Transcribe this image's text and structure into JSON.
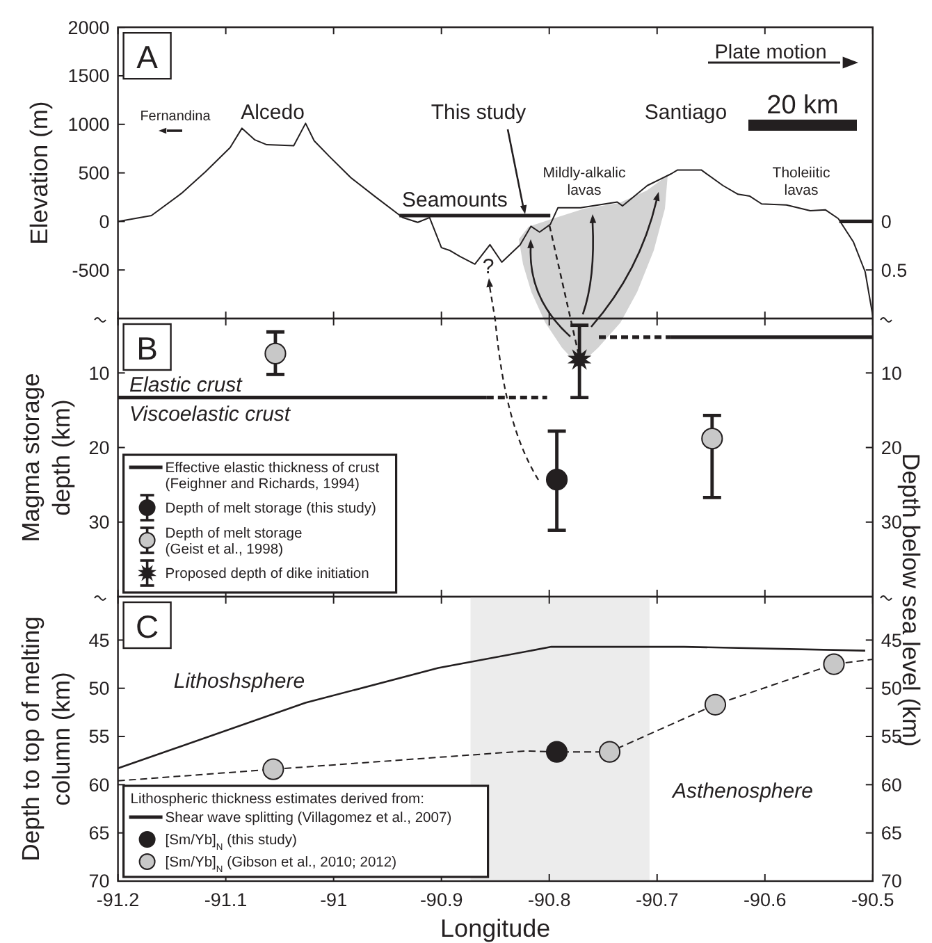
{
  "chart_data": [
    {
      "type": "line",
      "ylabel": "Elevation (m)",
      "xlim": [
        -91.2,
        -90.5
      ],
      "xticks": [
        -91.2,
        -91.1,
        -91,
        -90.9,
        -90.8,
        -90.7,
        -90.6,
        -90.5
      ],
      "ylim": [
        -1000,
        2000
      ],
      "yticks": [
        -500,
        0,
        500,
        1000,
        1500,
        2000
      ],
      "y2lim": [
        1,
        -2
      ],
      "y2ticks": [
        0,
        0.5
      ],
      "tick_labels": "y",
      "annotations": [
        "A",
        "Plate motion",
        "20 km",
        "Fernandina",
        "Alcedo",
        "This study",
        "Santiago",
        "Seamounts",
        "Mildly-alkalic lavas",
        "Tholeiitic lavas",
        "?"
      ],
      "series": [
        {
          "color": "#231f20",
          "x": [
            -91.2,
            -91.169,
            -91.141,
            -91.119,
            -91.096,
            -91.085,
            -91.073,
            -91.062,
            -91.037,
            -91.026,
            -91.018,
            -91.004,
            -90.984,
            -90.962,
            -90.936,
            -90.922,
            -90.911,
            -90.9,
            -90.892,
            -90.883,
            -90.869,
            -90.855,
            -90.844,
            -90.827,
            -90.817,
            -90.809,
            -90.799,
            -90.792,
            -90.771,
            -90.737,
            -90.732,
            -90.709,
            -90.687,
            -90.681,
            -90.659,
            -90.639,
            -90.625,
            -90.614,
            -90.603,
            -90.58,
            -90.558,
            -90.544,
            -90.532,
            -90.518,
            -90.507,
            -90.5
          ],
          "values": [
            0,
            60,
            290,
            510,
            760,
            960,
            840,
            790,
            780,
            1010,
            830,
            670,
            450,
            260,
            40,
            -10,
            40,
            -270,
            -300,
            -360,
            -440,
            -240,
            -420,
            -240,
            -50,
            -110,
            -30,
            140,
            140,
            200,
            160,
            370,
            490,
            530,
            530,
            370,
            280,
            260,
            180,
            170,
            110,
            120,
            30,
            -210,
            -520,
            -970
          ]
        },
        {
          "color": "#231f20",
          "x": [
            -90.939,
            -90.799,
            -90.7,
            -90.531,
            -90.5
          ],
          "values": [
            60,
            60,
            null,
            0,
            0
          ]
        }
      ]
    },
    {
      "type": "scatter",
      "ylabel": "Magma storage depth (km)",
      "y2label": "Depth below sea level (km)",
      "xlim": [
        -91.2,
        -90.5
      ],
      "xticks": [
        -91.2,
        -91.1,
        -91,
        -90.9,
        -90.8,
        -90.7,
        -90.6,
        -90.5
      ],
      "ylim": [
        40,
        2.7
      ],
      "yticks": [
        10,
        20,
        30
      ],
      "y2lim": [
        40,
        2.7
      ],
      "y2ticks": [
        10,
        20,
        30
      ],
      "tick_labels": "y",
      "legend": "bottom left",
      "annotations": [
        "B",
        "Elastic crust",
        "Viscoelastic crust"
      ],
      "series": [
        {
          "name": "Effective elastic thickness of crust (Feighner and Richards, 1994)",
          "type": "line",
          "color": "#231f20",
          "line_style": "solid",
          "x": [
            -91.2,
            -90.858,
            -90.8,
            -90.687,
            -90.5
          ],
          "values": [
            13.3,
            13.3,
            null,
            5.2,
            5.2
          ]
        },
        {
          "type": "line",
          "color": "#231f20",
          "line_style": "dashed",
          "x": [
            -90.858,
            -90.802,
            -90.79,
            -90.754,
            -90.687
          ],
          "values": [
            13.3,
            13.3,
            null,
            5.2,
            5.2
          ]
        },
        {
          "name": "Depth of melt storage (this study)",
          "marker": "circle",
          "color": "#231f20",
          "x": [
            -90.793
          ],
          "values": [
            24.3
          ],
          "errors": [
            [
              17.8,
              31.1
            ]
          ]
        },
        {
          "name": "Depth of melt storage (Geist et al., 1998)",
          "marker": "circle",
          "color": "#c8c8c8",
          "x": [
            -91.054,
            -90.649
          ],
          "values": [
            7.4,
            18.8
          ],
          "errors": [
            [
              4.5,
              10.2
            ],
            [
              15.7,
              26.7
            ]
          ]
        },
        {
          "name": "Proposed depth of dike initiation",
          "marker": "star",
          "color": "#231f20",
          "x": [
            -90.772
          ],
          "values": [
            8.2
          ],
          "errors": [
            [
              3.6,
              13.3
            ]
          ]
        }
      ]
    },
    {
      "type": "line",
      "ylabel": "Depth to top of melting column (km)",
      "xlabel": "Longitude",
      "xlim": [
        -91.2,
        -90.5
      ],
      "xticks": [
        -91.2,
        -91.1,
        -91,
        -90.9,
        -90.8,
        -90.7,
        -90.6,
        -90.5
      ],
      "ylim": [
        70,
        40.5
      ],
      "yticks": [
        45,
        50,
        55,
        60,
        65,
        70
      ],
      "y2lim": [
        70,
        40.5
      ],
      "y2ticks": [
        45,
        50,
        55,
        60,
        65,
        70
      ],
      "legend": "bottom left",
      "legend_title": "Lithospheric thickness estimates derived from:",
      "bands": [
        {
          "axis": "x",
          "from": -90.873,
          "to": -90.707,
          "color": "#ececec"
        }
      ],
      "annotations": [
        "C",
        "Lithoshsphere",
        "Asthenosphere"
      ],
      "series": [
        {
          "name": "Shear wave splitting (Villagomez et al., 2007)",
          "color": "#231f20",
          "line_style": "solid",
          "x": [
            -91.2,
            -91.026,
            -90.903,
            -90.798,
            -90.675,
            -90.507
          ],
          "values": [
            58.3,
            51.5,
            47.9,
            45.7,
            45.7,
            46.1
          ]
        },
        {
          "color": "#231f20",
          "line_style": "dashed",
          "x": [
            -91.2,
            -91.056,
            -90.821,
            -90.793,
            -90.744,
            -90.646,
            -90.536,
            -90.5
          ],
          "values": [
            59.6,
            58.4,
            56.5,
            56.6,
            56.6,
            51.7,
            47.5,
            47.0
          ]
        },
        {
          "name": "[Sm/Yb]$_{N}$ (this study)",
          "type": "scatter",
          "marker": "circle",
          "color": "#231f20",
          "x": [
            -90.793
          ],
          "values": [
            56.6
          ]
        },
        {
          "name": "[Sm/Yb]$_{N}$ (Gibson et al., 2010; 2012)",
          "type": "scatter",
          "marker": "circle",
          "color": "#c8c8c8",
          "x": [
            -91.056,
            -90.744,
            -90.646,
            -90.536
          ],
          "values": [
            58.4,
            56.6,
            51.7,
            47.5
          ]
        }
      ]
    }
  ]
}
